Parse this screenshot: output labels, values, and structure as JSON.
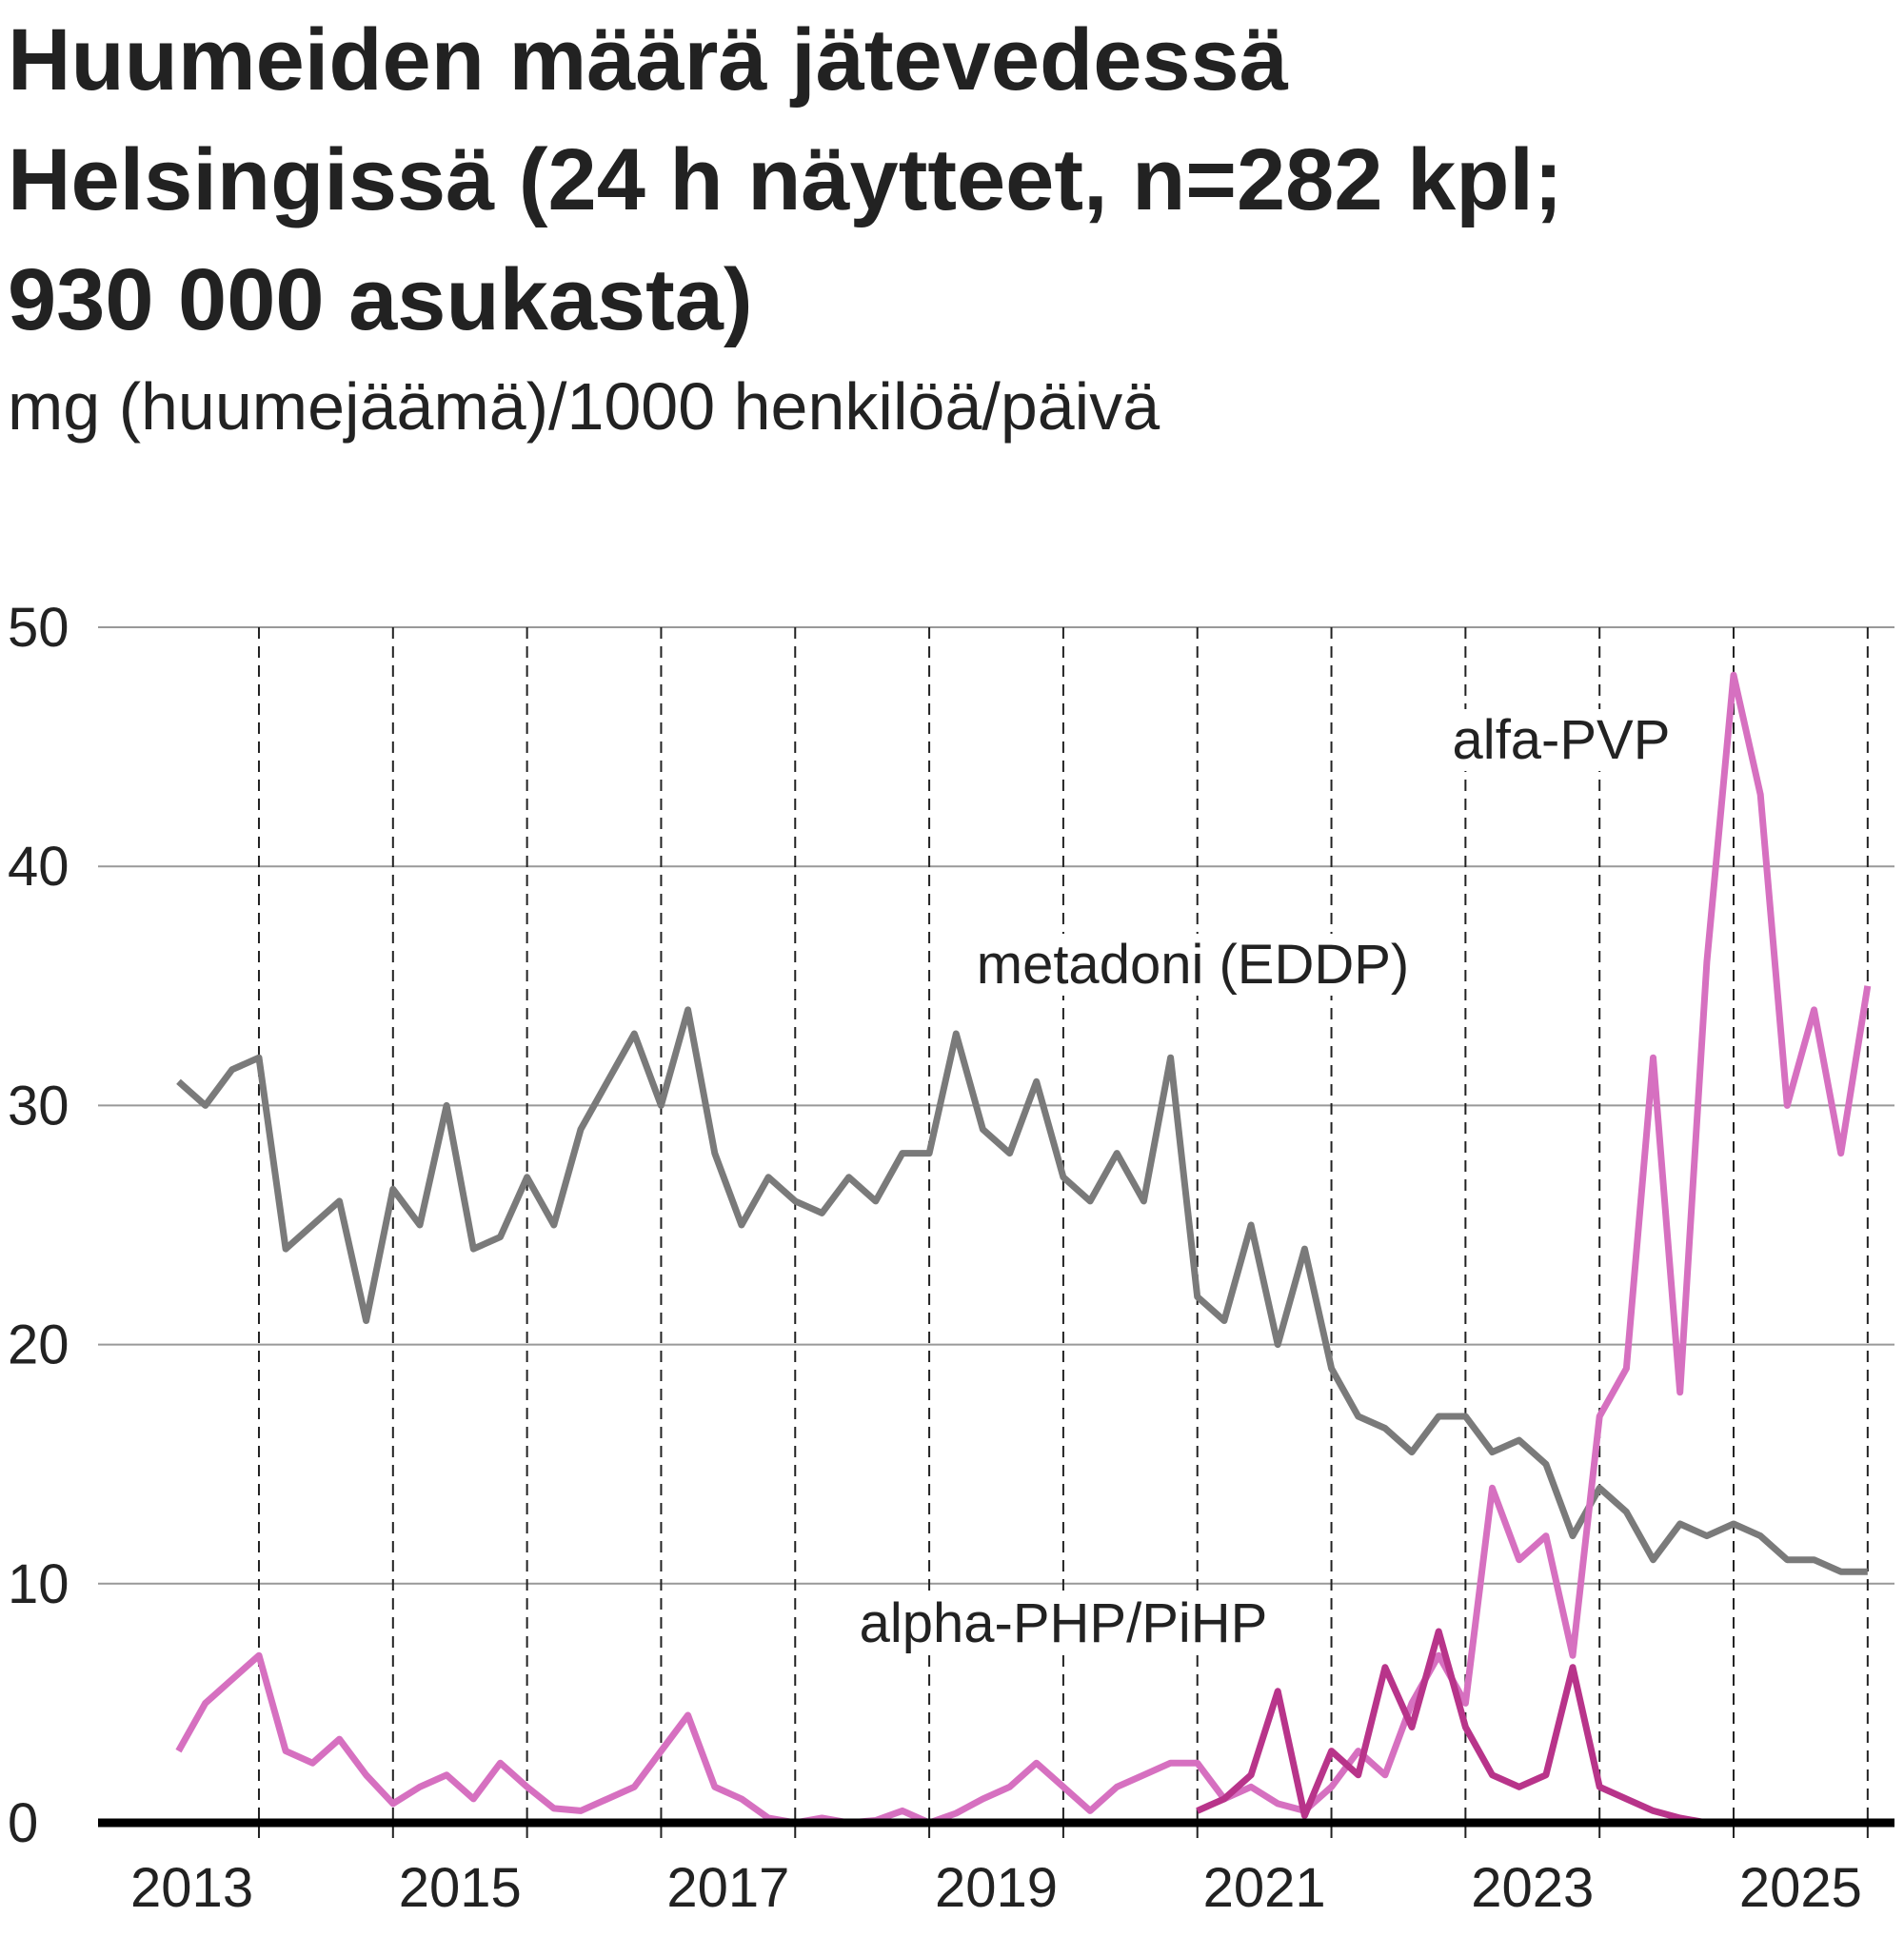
{
  "chart_data": {
    "type": "line",
    "title": "Huumeiden määrä jätevedessä Helsingissä (24 h näytteet, n=282 kpl; 930 000 asukasta)",
    "subtitle": "mg (huumejäämä)/1000 henkilöä/päivä",
    "x": [
      2013.4,
      2013.6,
      2013.8,
      2014.0,
      2014.2,
      2014.4,
      2014.6,
      2014.8,
      2015.0,
      2015.2,
      2015.4,
      2015.6,
      2015.8,
      2016.0,
      2016.2,
      2016.4,
      2016.6,
      2016.8,
      2017.0,
      2017.2,
      2017.4,
      2017.6,
      2017.8,
      2018.0,
      2018.2,
      2018.4,
      2018.6,
      2018.8,
      2019.0,
      2019.2,
      2019.4,
      2019.6,
      2019.8,
      2020.0,
      2020.2,
      2020.4,
      2020.6,
      2020.8,
      2021.0,
      2021.2,
      2021.4,
      2021.6,
      2021.8,
      2022.0,
      2022.2,
      2022.4,
      2022.6,
      2022.8,
      2023.0,
      2023.2,
      2023.4,
      2023.6,
      2023.8,
      2024.0,
      2024.2,
      2024.4,
      2024.6,
      2024.8,
      2025.0,
      2025.2,
      2025.4,
      2025.6,
      2025.8,
      2026.0
    ],
    "series": [
      {
        "name": "metadoni (EDDP)",
        "color": "#7a7a7a",
        "values": [
          31,
          30,
          31.5,
          32,
          24,
          25,
          26,
          21,
          26.5,
          25,
          30,
          24,
          24.5,
          27,
          25,
          29,
          31,
          33,
          30,
          34,
          28,
          25,
          27,
          26,
          25.5,
          27,
          26,
          28,
          28,
          33,
          29,
          28,
          31,
          27,
          26,
          28,
          26,
          32,
          22,
          21,
          25,
          20,
          24,
          19,
          17,
          16.5,
          15.5,
          17,
          17,
          15.5,
          16,
          15,
          12,
          14,
          13,
          11,
          12.5,
          12,
          12.5,
          12,
          11,
          11,
          10.5,
          10.5
        ]
      },
      {
        "name": "alfa-PVP",
        "color": "#d670c0",
        "values": [
          3,
          5,
          6,
          7,
          3,
          2.5,
          3.5,
          2,
          0.8,
          1.5,
          2,
          1,
          2.5,
          1.5,
          0.6,
          0.5,
          1,
          1.5,
          3,
          4.5,
          1.5,
          1,
          0.2,
          0,
          0.2,
          0,
          0.1,
          0.5,
          0,
          0.4,
          1,
          1.5,
          2.5,
          1.5,
          0.5,
          1.5,
          2,
          2.5,
          2.5,
          1,
          1.5,
          0.8,
          0.5,
          1.5,
          3,
          2,
          5,
          7,
          5,
          14,
          11,
          12,
          7,
          17,
          19,
          32,
          18,
          36,
          48,
          43,
          30,
          34,
          28,
          35
        ]
      },
      {
        "name": "alpha-PHP/PiHP",
        "color": "#b8348a",
        "values": [
          null,
          null,
          null,
          null,
          null,
          null,
          null,
          null,
          null,
          null,
          null,
          null,
          null,
          null,
          null,
          null,
          null,
          null,
          null,
          null,
          null,
          null,
          null,
          null,
          null,
          null,
          null,
          null,
          null,
          null,
          null,
          null,
          null,
          null,
          null,
          null,
          null,
          null,
          0.5,
          1,
          2,
          5.5,
          0.3,
          3,
          2,
          6.5,
          4,
          8,
          4,
          2,
          1.5,
          2,
          6.5,
          1.5,
          1,
          0.5,
          0.2,
          0,
          0,
          0,
          0,
          0,
          0,
          0
        ]
      }
    ],
    "xlim": [
      2012.8,
      2026.2
    ],
    "xticks": [
      {
        "value": 2013.5,
        "label": "2013"
      },
      {
        "value": 2015.5,
        "label": "2015"
      },
      {
        "value": 2017.5,
        "label": "2017"
      },
      {
        "value": 2019.5,
        "label": "2019"
      },
      {
        "value": 2021.5,
        "label": "2021"
      },
      {
        "value": 2023.5,
        "label": "2023"
      },
      {
        "value": 2025.5,
        "label": "2025"
      }
    ],
    "xgrid": [
      2014,
      2015,
      2016,
      2017,
      2018,
      2019,
      2020,
      2021,
      2022,
      2023,
      2024,
      2025,
      2026
    ],
    "ylim": [
      0,
      50
    ],
    "yticks": [
      0,
      10,
      20,
      30,
      40,
      50
    ],
    "grid": true
  }
}
